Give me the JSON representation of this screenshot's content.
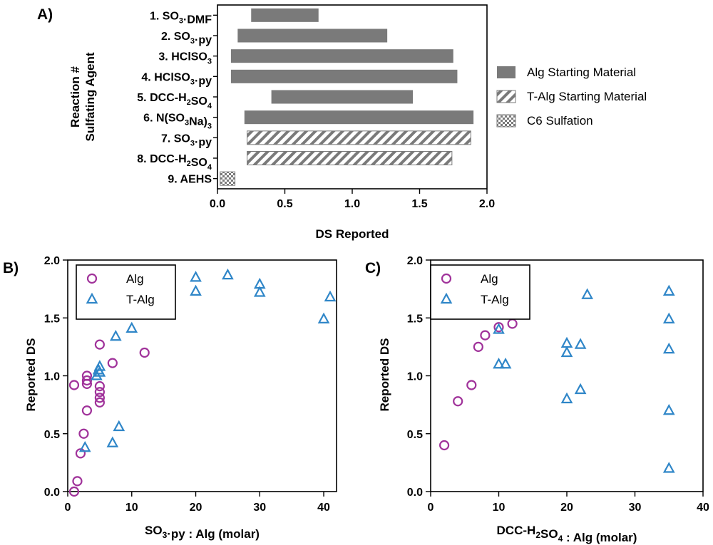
{
  "colors": {
    "alg_fill": "#7a7a7a",
    "alg_marker": "#a0329a",
    "talg_marker": "#2f86c8",
    "axis": "#000000"
  },
  "chart_data": [
    {
      "panel_label": "A)",
      "type": "bar",
      "orientation": "horizontal-range",
      "xlabel": "DS Reported",
      "ylabel_lines": [
        "Reaction #",
        "Sulfating Agent"
      ],
      "xlim": [
        0.0,
        2.0
      ],
      "xticks": [
        "0.0",
        "0.5",
        "1.0",
        "1.5",
        "2.0"
      ],
      "categories": [
        {
          "num": "1.",
          "parts": [
            [
              "SO",
              ""
            ],
            [
              "3",
              "sub"
            ],
            [
              "·DMF",
              ""
            ]
          ]
        },
        {
          "num": "2.",
          "parts": [
            [
              "SO",
              ""
            ],
            [
              "3",
              "sub"
            ],
            [
              "·py",
              ""
            ]
          ]
        },
        {
          "num": "3.",
          "parts": [
            [
              "HClSO",
              ""
            ],
            [
              "3",
              "sub"
            ]
          ]
        },
        {
          "num": "4.",
          "parts": [
            [
              "HClSO",
              ""
            ],
            [
              "3",
              "sub"
            ],
            [
              "·py",
              ""
            ]
          ]
        },
        {
          "num": "5.",
          "parts": [
            [
              "DCC-H",
              ""
            ],
            [
              "2",
              "sub"
            ],
            [
              "SO",
              ""
            ],
            [
              "4",
              "sub"
            ]
          ]
        },
        {
          "num": "6.",
          "parts": [
            [
              "N(SO",
              ""
            ],
            [
              "3",
              "sub"
            ],
            [
              "Na)",
              ""
            ],
            [
              "3",
              "sub"
            ]
          ]
        },
        {
          "num": "7.",
          "parts": [
            [
              "SO",
              ""
            ],
            [
              "3",
              "sub"
            ],
            [
              "·py",
              ""
            ]
          ]
        },
        {
          "num": "8.",
          "parts": [
            [
              "DCC-H",
              ""
            ],
            [
              "2",
              "sub"
            ],
            [
              "SO",
              ""
            ],
            [
              "4",
              "sub"
            ]
          ]
        },
        {
          "num": "9.",
          "parts": [
            [
              "AEHS",
              ""
            ]
          ]
        }
      ],
      "ranges": [
        {
          "start": 0.25,
          "end": 0.75,
          "series": "alg"
        },
        {
          "start": 0.15,
          "end": 1.26,
          "series": "alg"
        },
        {
          "start": 0.1,
          "end": 1.75,
          "series": "alg"
        },
        {
          "start": 0.1,
          "end": 1.78,
          "series": "alg"
        },
        {
          "start": 0.4,
          "end": 1.45,
          "series": "alg"
        },
        {
          "start": 0.2,
          "end": 1.9,
          "series": "alg"
        },
        {
          "start": 0.22,
          "end": 1.88,
          "series": "talg"
        },
        {
          "start": 0.22,
          "end": 1.74,
          "series": "talg"
        },
        {
          "start": 0.02,
          "end": 0.13,
          "series": "c6"
        }
      ],
      "legend": [
        {
          "key": "alg",
          "label": "Alg Starting Material"
        },
        {
          "key": "talg",
          "label": "T-Alg Starting Material"
        },
        {
          "key": "c6",
          "label": "C6 Sulfation"
        }
      ],
      "legend_position": "right"
    },
    {
      "panel_label": "B)",
      "type": "scatter",
      "xlabel_parts": [
        [
          "SO",
          ""
        ],
        [
          "3",
          "sub"
        ],
        [
          "·py : Alg (molar)",
          ""
        ]
      ],
      "ylabel": "Reported  DS",
      "xlim": [
        0,
        42
      ],
      "ylim": [
        0.0,
        2.0
      ],
      "xticks": [
        "0",
        "10",
        "20",
        "30",
        "40"
      ],
      "yticks": [
        "0.0",
        "0.5",
        "1.0",
        "1.5",
        "2.0"
      ],
      "legend_position": "top-left",
      "series": [
        {
          "name": "Alg",
          "marker": "circle",
          "points": [
            [
              1,
              0.0
            ],
            [
              1.5,
              0.09
            ],
            [
              1,
              0.92
            ],
            [
              2,
              0.33
            ],
            [
              2.5,
              0.5
            ],
            [
              3,
              0.7
            ],
            [
              3,
              0.93
            ],
            [
              3,
              0.96
            ],
            [
              3,
              1.0
            ],
            [
              5,
              0.77
            ],
            [
              5,
              0.81
            ],
            [
              5,
              0.86
            ],
            [
              5,
              0.91
            ],
            [
              5,
              1.27
            ],
            [
              7,
              1.11
            ],
            [
              12,
              1.2
            ]
          ]
        },
        {
          "name": "T-Alg",
          "marker": "triangle",
          "points": [
            [
              2.7,
              0.38
            ],
            [
              4.5,
              1.0
            ],
            [
              4.8,
              1.05
            ],
            [
              5,
              1.08
            ],
            [
              5,
              1.03
            ],
            [
              7,
              0.42
            ],
            [
              7.5,
              1.34
            ],
            [
              8,
              0.56
            ],
            [
              10,
              1.41
            ],
            [
              20,
              1.73
            ],
            [
              20,
              1.85
            ],
            [
              25,
              1.87
            ],
            [
              30,
              1.72
            ],
            [
              30,
              1.79
            ],
            [
              40,
              1.49
            ],
            [
              41,
              1.68
            ]
          ]
        }
      ]
    },
    {
      "panel_label": "C)",
      "type": "scatter",
      "xlabel_parts": [
        [
          "DCC-H",
          ""
        ],
        [
          "2",
          "sub"
        ],
        [
          "SO",
          ""
        ],
        [
          "4",
          "sub"
        ],
        [
          " : Alg (molar)",
          ""
        ]
      ],
      "ylabel": "Reported  DS",
      "xlim": [
        0,
        40
      ],
      "ylim": [
        0.0,
        2.0
      ],
      "xticks": [
        "0",
        "10",
        "20",
        "30",
        "40"
      ],
      "yticks": [
        "0.0",
        "0.5",
        "1.0",
        "1.5",
        "2.0"
      ],
      "legend_position": "top-left",
      "series": [
        {
          "name": "Alg",
          "marker": "circle",
          "points": [
            [
              2,
              0.4
            ],
            [
              4,
              0.78
            ],
            [
              6,
              0.92
            ],
            [
              7,
              1.25
            ],
            [
              8,
              1.35
            ],
            [
              10,
              1.42
            ],
            [
              12,
              1.45
            ]
          ]
        },
        {
          "name": "T-Alg",
          "marker": "triangle",
          "points": [
            [
              10,
              1.4
            ],
            [
              10,
              1.1
            ],
            [
              11,
              1.1
            ],
            [
              20,
              0.8
            ],
            [
              20,
              1.2
            ],
            [
              20,
              1.28
            ],
            [
              22,
              0.88
            ],
            [
              22,
              1.27
            ],
            [
              23,
              1.7
            ],
            [
              35,
              0.2
            ],
            [
              35,
              0.7
            ],
            [
              35,
              1.23
            ],
            [
              35,
              1.49
            ],
            [
              35,
              1.73
            ]
          ]
        }
      ]
    }
  ]
}
